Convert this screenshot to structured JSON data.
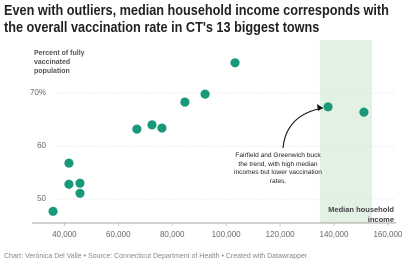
{
  "chart_data": {
    "type": "scatter",
    "title": "Even with outliers, median household income corresponds with the overall vaccination rate in CT's 13 biggest towns",
    "y_label": "Percent of fully vaccinated population",
    "x_label": "Median household income",
    "annotation": "Fairfield and Greenwich buck the trend, with high median incomes but lower vaccination rates.",
    "footer": "Chart: Verónica Del Valle • Source: Connecticut Department of Health • Created with Datawrapper",
    "x": [
      35800,
      41700,
      41700,
      45800,
      45800,
      66900,
      72500,
      76200,
      84700,
      92200,
      103300,
      137800,
      151100
    ],
    "values": [
      47.7,
      56.8,
      52.8,
      53.0,
      51.1,
      63.2,
      64.0,
      63.4,
      68.3,
      69.8,
      75.7,
      67.4,
      66.4
    ],
    "color": "#17997a",
    "highlight": {
      "range": [
        134800,
        154100
      ],
      "color": "#e3f1e5"
    },
    "xlim": [
      28000,
      163000
    ],
    "ylim": [
      45.5,
      80
    ],
    "xticks": [
      {
        "value": 40000,
        "label": "40,000"
      },
      {
        "value": 60000,
        "label": "60,000"
      },
      {
        "value": 80000,
        "label": "80,000"
      },
      {
        "value": 100000,
        "label": "100,000"
      },
      {
        "value": 120000,
        "label": "120,000"
      },
      {
        "value": 140000,
        "label": "140,000"
      },
      {
        "value": 160000,
        "label": "160,000"
      }
    ],
    "yticks": [
      {
        "value": 70,
        "label": "70%"
      },
      60,
      50
    ],
    "grid": true
  }
}
